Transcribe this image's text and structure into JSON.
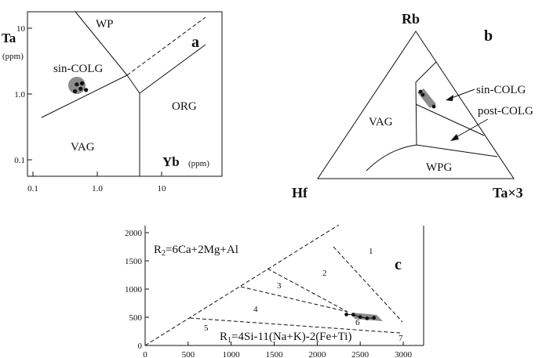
{
  "chart_data": [
    {
      "type": "scatter",
      "panel_letter": "a",
      "scale": "log-log",
      "xlabel": "Yb",
      "xunit": "(ppm)",
      "ylabel": "Ta",
      "yunit": "(ppm)",
      "x_tick_labels": [
        "0.1",
        "1.0",
        "10"
      ],
      "y_tick_labels": [
        "10",
        "1.0",
        "0.1"
      ],
      "xlim": [
        0.1,
        100
      ],
      "ylim": [
        0.05,
        15
      ],
      "field_labels": [
        "WP",
        "sin-COLG",
        "VAG",
        "ORG"
      ],
      "points": [
        {
          "x": 0.48,
          "y": 1.4
        },
        {
          "x": 0.58,
          "y": 1.45
        },
        {
          "x": 0.55,
          "y": 1.2
        },
        {
          "x": 0.45,
          "y": 1.1
        },
        {
          "x": 0.67,
          "y": 1.15
        }
      ]
    },
    {
      "type": "ternary",
      "panel_letter": "b",
      "vertices": [
        "Rb",
        "Hf",
        "Ta×3"
      ],
      "field_labels": [
        "VAG",
        "WPG"
      ],
      "arrow_labels": [
        "sin-COLG",
        "post-COLG"
      ]
    },
    {
      "type": "scatter",
      "panel_letter": "c",
      "xlabel": "R1=4Si-11(Na+K)-2(Fe+Ti)",
      "ylabel": "R2=6Ca+2Mg+Al",
      "x_tick_labels": [
        "0",
        "500",
        "1000",
        "1500",
        "2000",
        "2500",
        "3000"
      ],
      "y_tick_labels": [
        "0",
        "500",
        "1000",
        "1500",
        "2000"
      ],
      "xlim": [
        0,
        3100
      ],
      "ylim": [
        0,
        2100
      ],
      "field_labels": [
        "1",
        "2",
        "3",
        "4",
        "5",
        "6",
        "7"
      ],
      "points": [
        {
          "x": 2340,
          "y": 550
        },
        {
          "x": 2420,
          "y": 545
        },
        {
          "x": 2500,
          "y": 505
        },
        {
          "x": 2580,
          "y": 480
        },
        {
          "x": 2660,
          "y": 490
        }
      ]
    }
  ]
}
